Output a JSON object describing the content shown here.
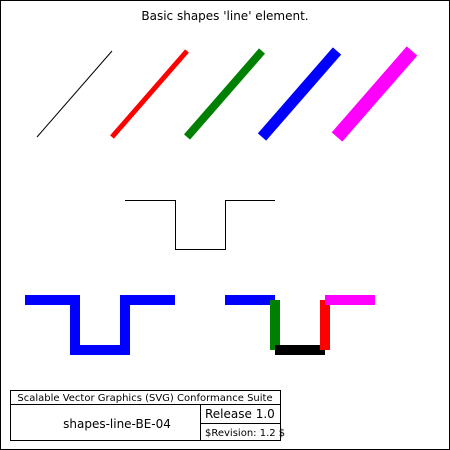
{
  "title": "Basic shapes 'line' element.",
  "colors": {
    "black": "#000000",
    "red": "#ff0000",
    "green": "#008000",
    "blue": "#0000ff",
    "magenta": "#ff00ff"
  },
  "footer": {
    "suite": "Scalable Vector Graphics (SVG) Conformance Suite",
    "test_name": "shapes-line-BE-04",
    "release": "Release 1.0",
    "revision": "$Revision: 1.2 $"
  }
}
